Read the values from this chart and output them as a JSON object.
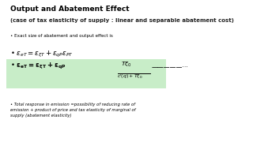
{
  "title": "Output and Abatement Effect",
  "subtitle": "(case of tax elasticity of supply : linear and separable abatement cost)",
  "bullet1": "Exact size of abatement and output effect is",
  "eq1": "$\\varepsilon_{eT} = \\varepsilon_{\\xi T} + \\varepsilon_{qP}\\varepsilon_{PT}$",
  "highlight_color": "#c8edc8",
  "bullet_bottom": "Total response in emission =possibility of reducing rate of\nemission + product of price and tax elasticity of marginal of\nsupply (abatement elasticity)",
  "bg_color": "#ffffff",
  "title_fontsize": 6.5,
  "subtitle_fontsize": 5.0,
  "eq_fontsize": 6.2,
  "small_fontsize": 3.8
}
